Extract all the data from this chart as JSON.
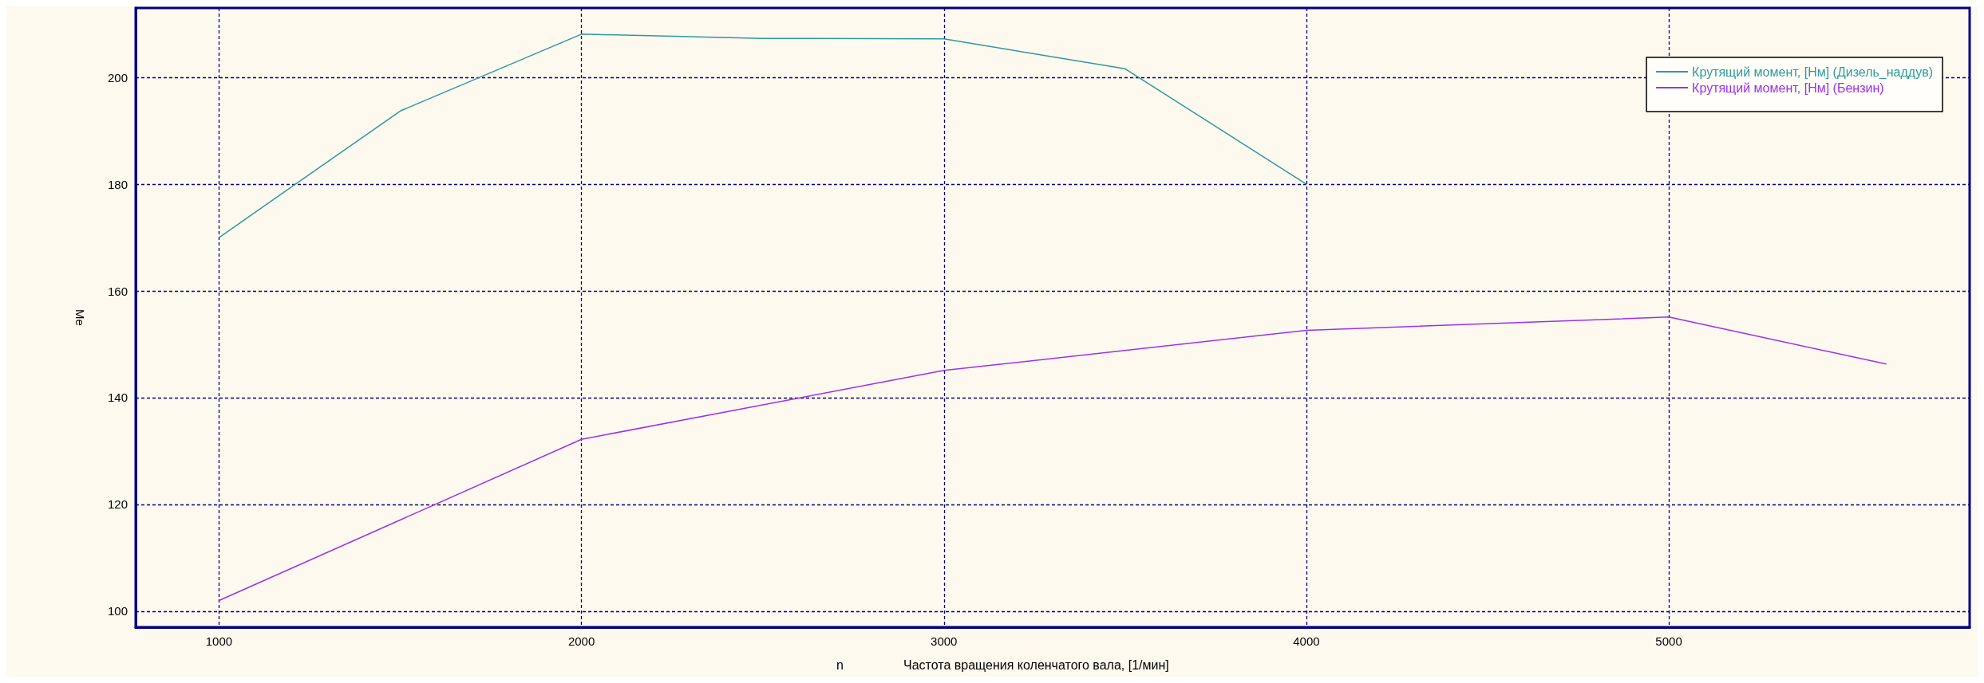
{
  "chart_data": {
    "type": "line",
    "xlabel": "Частота вращения коленчатого вала, [1/мин]",
    "ylabel": "Me",
    "annotations": [
      "n"
    ],
    "series": [
      {
        "name": "Крутящий момент, [Нм] (Дизель_наддув)",
        "color": "#2e9a9a",
        "x": [
          1000,
          1500,
          2000,
          2500,
          3000,
          3500,
          4000
        ],
        "values": [
          170,
          193.7,
          208.1,
          207.3,
          207.2,
          201.6,
          180
        ]
      },
      {
        "name": "Крутящий момент, [Нм] (Бензин)",
        "color": "#9b30f0",
        "x": [
          1000,
          2000,
          3000,
          4000,
          5000,
          5600
        ],
        "values": [
          102,
          132.2,
          145.1,
          152.6,
          155.1,
          146.3
        ]
      }
    ],
    "xlim": [
      770,
      5830
    ],
    "ylim": [
      97,
      213
    ],
    "xticks": [
      1000,
      2000,
      3000,
      4000,
      5000
    ],
    "yticks": [
      100,
      120,
      140,
      160,
      180,
      200
    ],
    "grid": true,
    "legend": "top right",
    "marker": "none",
    "line_style": "solid"
  }
}
